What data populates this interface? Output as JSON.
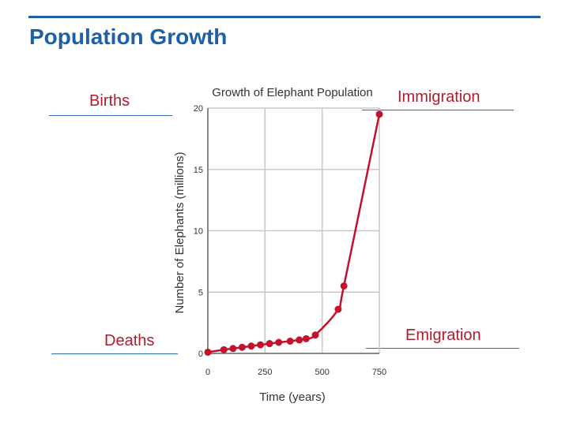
{
  "slide": {
    "title": "Population Growth",
    "accent_color": "#1f5fa6"
  },
  "annotations": {
    "births": "Births",
    "immigration": "Immigration",
    "deaths": "Deaths",
    "emigration": "Emigration",
    "label_color": "#b01c2e",
    "rule_color": "#2f6db5"
  },
  "chart_data": {
    "type": "line",
    "title": "Growth of Elephant Population",
    "xlabel": "Time (years)",
    "ylabel": "Number of Elephants (millions)",
    "xlim": [
      0,
      750
    ],
    "ylim": [
      0,
      20
    ],
    "xticks": [
      0,
      250,
      500,
      750
    ],
    "yticks": [
      0,
      5,
      10,
      15,
      20
    ],
    "grid": true,
    "line_color": "#c3122c",
    "series": [
      {
        "x": [
          0,
          70,
          110,
          150,
          190,
          230,
          270,
          310,
          360,
          400,
          430,
          470,
          570,
          595,
          750
        ],
        "y": [
          0.1,
          0.3,
          0.4,
          0.5,
          0.6,
          0.7,
          0.8,
          0.9,
          1.0,
          1.1,
          1.2,
          1.5,
          3.6,
          5.5,
          19.5
        ]
      }
    ]
  }
}
